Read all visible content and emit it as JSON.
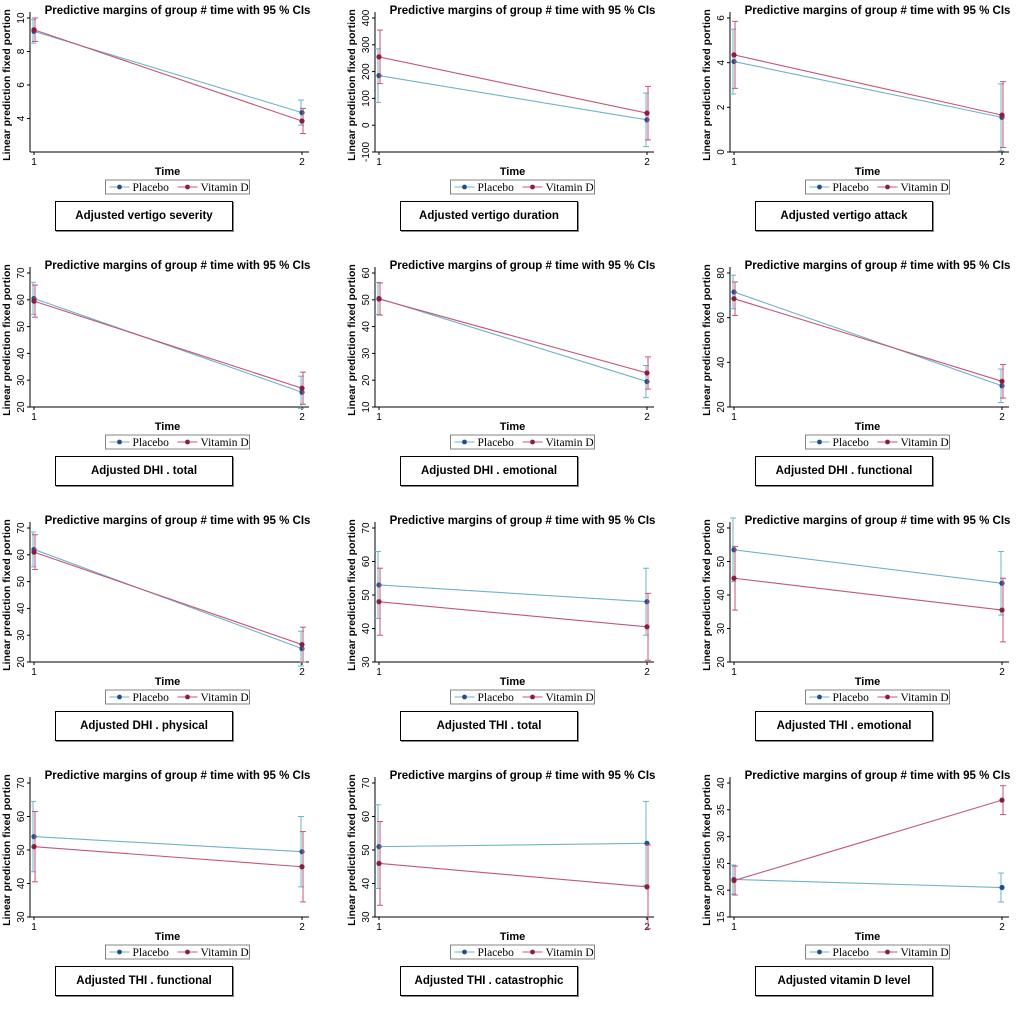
{
  "colors": {
    "placebo": "#6fb3c6",
    "vitamin_d": "#c4557a",
    "placebo_marker": "#1f4f8a",
    "vitamin_d_marker": "#8b1d3f"
  },
  "chart_data": [
    {
      "type": "line",
      "title": "Predictive margins of group # time with 95 % CIs",
      "ylabel": "Linear prediction fixed portion",
      "xlabel": "Time",
      "categories": [
        "1",
        "2"
      ],
      "ylim": [
        2,
        10
      ],
      "yticks": [
        4,
        6,
        8,
        10
      ],
      "series": [
        {
          "name": "Placebo",
          "values": [
            9.2,
            4.35
          ],
          "ci_low": [
            8.5,
            3.6
          ],
          "ci_high": [
            9.9,
            5.1
          ]
        },
        {
          "name": "Vitamin D",
          "values": [
            9.3,
            3.85
          ],
          "ci_low": [
            8.6,
            3.1
          ],
          "ci_high": [
            10.0,
            4.6
          ]
        }
      ],
      "legend_position": "bottom",
      "caption": "Adjusted vertigo severity"
    },
    {
      "type": "line",
      "title": "Predictive margins of group # time with 95 % CIs",
      "ylabel": "Linear prediction fixed portion",
      "xlabel": "Time",
      "categories": [
        "1",
        "2"
      ],
      "ylim": [
        -100,
        400
      ],
      "yticks": [
        -100,
        0,
        100,
        200,
        300,
        400
      ],
      "series": [
        {
          "name": "Placebo",
          "values": [
            185,
            20
          ],
          "ci_low": [
            85,
            -80
          ],
          "ci_high": [
            285,
            120
          ]
        },
        {
          "name": "Vitamin D",
          "values": [
            255,
            45
          ],
          "ci_low": [
            155,
            -55
          ],
          "ci_high": [
            355,
            145
          ]
        }
      ],
      "legend_position": "bottom",
      "caption": "Adjusted vertigo duration"
    },
    {
      "type": "line",
      "title": "Predictive margins of group # time with 95 % CIs",
      "ylabel": "Linear prediction fixed portion",
      "xlabel": "Time",
      "categories": [
        "1",
        "2"
      ],
      "ylim": [
        0,
        6
      ],
      "yticks": [
        0,
        2,
        4,
        6
      ],
      "series": [
        {
          "name": "Placebo",
          "values": [
            4.05,
            1.55
          ],
          "ci_low": [
            2.6,
            0.05
          ],
          "ci_high": [
            5.5,
            3.05
          ]
        },
        {
          "name": "Vitamin D",
          "values": [
            4.35,
            1.65
          ],
          "ci_low": [
            2.85,
            0.2
          ],
          "ci_high": [
            5.85,
            3.15
          ]
        }
      ],
      "legend_position": "bottom",
      "caption": "Adjusted vertigo attack"
    },
    {
      "type": "line",
      "title": "Predictive margins of group # time with 95 % CIs",
      "ylabel": "Linear prediction fixed portion",
      "xlabel": "Time",
      "categories": [
        "1",
        "2"
      ],
      "ylim": [
        20,
        70
      ],
      "yticks": [
        20,
        30,
        40,
        50,
        60,
        70
      ],
      "series": [
        {
          "name": "Placebo",
          "values": [
            60.5,
            25.5
          ],
          "ci_low": [
            54.5,
            19.5
          ],
          "ci_high": [
            66.5,
            31.5
          ]
        },
        {
          "name": "Vitamin D",
          "values": [
            59.5,
            27
          ],
          "ci_low": [
            53.5,
            21
          ],
          "ci_high": [
            65.5,
            33
          ]
        }
      ],
      "legend_position": "bottom",
      "caption": "Adjusted DHI . total"
    },
    {
      "type": "line",
      "title": "Predictive margins of group # time with 95 % CIs",
      "ylabel": "Linear prediction fixed portion",
      "xlabel": "Time",
      "categories": [
        "1",
        "2"
      ],
      "ylim": [
        10,
        60
      ],
      "yticks": [
        10,
        20,
        30,
        40,
        50,
        60
      ],
      "series": [
        {
          "name": "Placebo",
          "values": [
            50.5,
            19.5
          ],
          "ci_low": [
            44.5,
            13.5
          ],
          "ci_high": [
            56.5,
            25.5
          ]
        },
        {
          "name": "Vitamin D",
          "values": [
            50.3,
            22.7
          ],
          "ci_low": [
            44.3,
            16.7
          ],
          "ci_high": [
            56.3,
            28.7
          ]
        }
      ],
      "legend_position": "bottom",
      "caption": "Adjusted DHI . emotional"
    },
    {
      "type": "line",
      "title": "Predictive margins of group # time with 95 % CIs",
      "ylabel": "Linear prediction fixed portion",
      "xlabel": "Time",
      "categories": [
        "1",
        "2"
      ],
      "ylim": [
        20,
        80
      ],
      "yticks": [
        20,
        40,
        60,
        80
      ],
      "series": [
        {
          "name": "Placebo",
          "values": [
            71.5,
            29.5
          ],
          "ci_low": [
            64,
            22
          ],
          "ci_high": [
            79,
            37
          ]
        },
        {
          "name": "Vitamin D",
          "values": [
            68.5,
            31.5
          ],
          "ci_low": [
            61,
            24
          ],
          "ci_high": [
            76,
            39
          ]
        }
      ],
      "legend_position": "bottom",
      "caption": "Adjusted DHI . functional"
    },
    {
      "type": "line",
      "title": "Predictive margins of group # time with 95 % CIs",
      "ylabel": "Linear prediction fixed portion",
      "xlabel": "Time",
      "categories": [
        "1",
        "2"
      ],
      "ylim": [
        20,
        70
      ],
      "yticks": [
        20,
        30,
        40,
        50,
        60,
        70
      ],
      "series": [
        {
          "name": "Placebo",
          "values": [
            62,
            25
          ],
          "ci_low": [
            55.5,
            18.5
          ],
          "ci_high": [
            68.5,
            31.5
          ]
        },
        {
          "name": "Vitamin D",
          "values": [
            61,
            26.5
          ],
          "ci_low": [
            54.5,
            20
          ],
          "ci_high": [
            67.5,
            33
          ]
        }
      ],
      "legend_position": "bottom",
      "caption": "Adjusted DHI . physical"
    },
    {
      "type": "line",
      "title": "Predictive margins of group # time with 95 % CIs",
      "ylabel": "Linear prediction fixed portion",
      "xlabel": "Time",
      "categories": [
        "1",
        "2"
      ],
      "ylim": [
        30,
        70
      ],
      "yticks": [
        30,
        40,
        50,
        60,
        70
      ],
      "series": [
        {
          "name": "Placebo",
          "values": [
            53,
            48
          ],
          "ci_low": [
            43,
            38
          ],
          "ci_high": [
            63,
            58
          ]
        },
        {
          "name": "Vitamin D",
          "values": [
            48,
            40.5
          ],
          "ci_low": [
            38,
            30.5
          ],
          "ci_high": [
            58,
            50.5
          ]
        }
      ],
      "legend_position": "bottom",
      "caption": "Adjusted THI . total"
    },
    {
      "type": "line",
      "title": "Predictive margins of group # time with 95 % CIs",
      "ylabel": "Linear prediction fixed portion",
      "xlabel": "Time",
      "categories": [
        "1",
        "2"
      ],
      "ylim": [
        20,
        60
      ],
      "yticks": [
        20,
        30,
        40,
        50,
        60
      ],
      "series": [
        {
          "name": "Placebo",
          "values": [
            53.5,
            43.5
          ],
          "ci_low": [
            44,
            34
          ],
          "ci_high": [
            63,
            53
          ]
        },
        {
          "name": "Vitamin D",
          "values": [
            45,
            35.5
          ],
          "ci_low": [
            35.5,
            26
          ],
          "ci_high": [
            54.5,
            45
          ]
        }
      ],
      "legend_position": "bottom",
      "caption": "Adjusted THI . emotional"
    },
    {
      "type": "line",
      "title": "Predictive margins of group # time with 95 % CIs",
      "ylabel": "Linear prediction fixed portion",
      "xlabel": "Time",
      "categories": [
        "1",
        "2"
      ],
      "ylim": [
        30,
        70
      ],
      "yticks": [
        30,
        40,
        50,
        60,
        70
      ],
      "series": [
        {
          "name": "Placebo",
          "values": [
            54,
            49.5
          ],
          "ci_low": [
            43.5,
            39
          ],
          "ci_high": [
            64.5,
            60
          ]
        },
        {
          "name": "Vitamin D",
          "values": [
            51,
            45
          ],
          "ci_low": [
            40.5,
            34.5
          ],
          "ci_high": [
            61.5,
            55.5
          ]
        }
      ],
      "legend_position": "bottom",
      "caption": "Adjusted THI . functional"
    },
    {
      "type": "line",
      "title": "Predictive margins of group # time with 95 % CIs",
      "ylabel": "Linear prediction fixed portion",
      "xlabel": "Time",
      "categories": [
        "1",
        "2"
      ],
      "ylim": [
        30,
        70
      ],
      "yticks": [
        30,
        40,
        50,
        60,
        70
      ],
      "series": [
        {
          "name": "Placebo",
          "values": [
            51,
            52
          ],
          "ci_low": [
            38.5,
            39.5
          ],
          "ci_high": [
            63.5,
            64.5
          ]
        },
        {
          "name": "Vitamin D",
          "values": [
            46,
            39
          ],
          "ci_low": [
            33.5,
            26.5
          ],
          "ci_high": [
            58.5,
            51.5
          ]
        }
      ],
      "legend_position": "bottom",
      "caption": "Adjusted THI . catastrophic"
    },
    {
      "type": "line",
      "title": "Predictive margins of group # time with 95 % CIs",
      "ylabel": "Linear prediction fixed portion",
      "xlabel": "Time",
      "categories": [
        "1",
        "2"
      ],
      "ylim": [
        15,
        40
      ],
      "yticks": [
        15,
        20,
        25,
        30,
        35,
        40
      ],
      "series": [
        {
          "name": "Placebo",
          "values": [
            22,
            20.5
          ],
          "ci_low": [
            19.3,
            17.8
          ],
          "ci_high": [
            24.7,
            23.2
          ]
        },
        {
          "name": "Vitamin D",
          "values": [
            21.8,
            36.8
          ],
          "ci_low": [
            19.1,
            34.1
          ],
          "ci_high": [
            24.5,
            39.5
          ]
        }
      ],
      "legend_position": "bottom",
      "caption": "Adjusted vitamin D level"
    }
  ]
}
